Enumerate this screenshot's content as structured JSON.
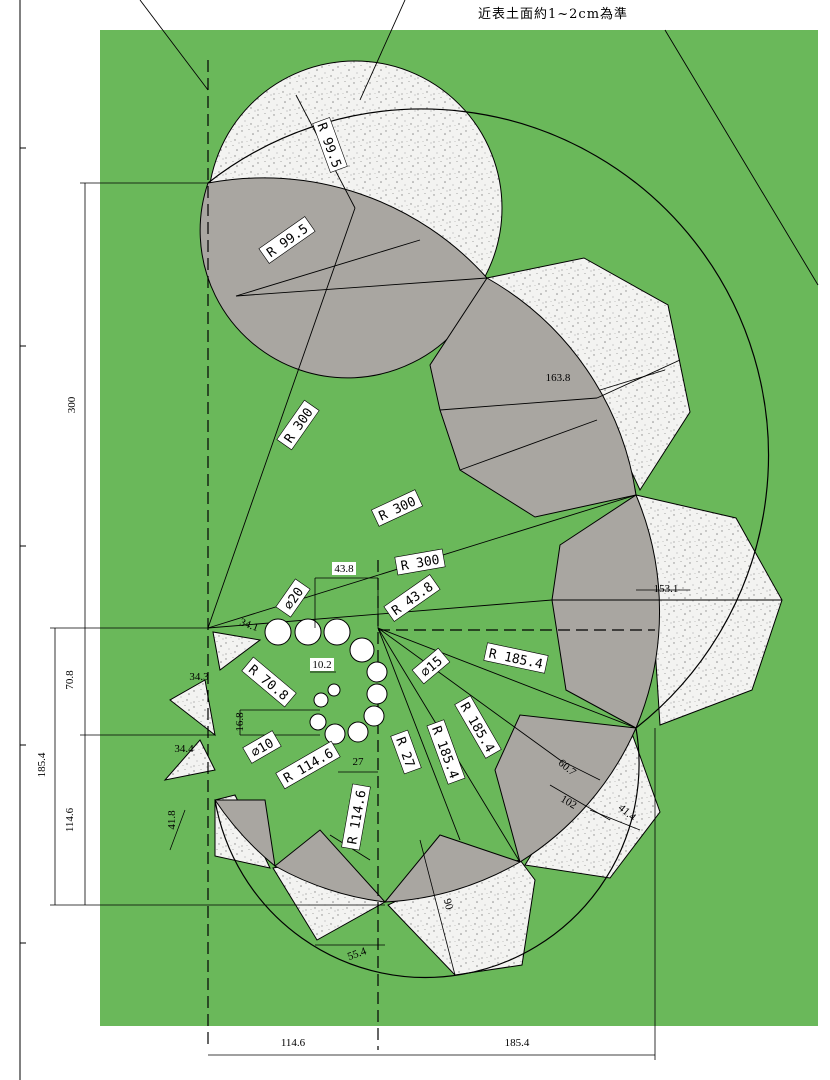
{
  "note": "近表土面約1~2cm為準",
  "colors": {
    "lawn": "#6ab85a",
    "gravel": "#f3f3f1",
    "gravel_dot": "#8a8a8a",
    "paving": "#a9a6a1",
    "line": "#000000"
  },
  "labels": {
    "r99_5_top": "R 99.5",
    "r99_5_mid": "R 99.5",
    "r300_a": "R 300",
    "r300_b": "R 300",
    "r300_c": "R 300",
    "r43_8": "R 43.8",
    "r185_4_a": "R 185.4",
    "r185_4_b": "R 185.4",
    "r185_4_c": "R 185.4",
    "r70_8": "R 70.8",
    "r114_6_a": "R 114.6",
    "r114_6_b": "R 114.6",
    "r27": "R 27",
    "d20": "⌀20",
    "d15": "⌀15",
    "d10": "⌀10"
  },
  "dimensions": {
    "d43_8": "43.8",
    "d10_2": "10.2",
    "d16_8": "16.8",
    "d27": "27",
    "d34_1": "34.1",
    "d34_3": "34.3",
    "d34_4": "34.4",
    "d41_8": "41.8",
    "d55_4": "55.4",
    "d60_7": "60.7",
    "d102": "102",
    "d41_4": "41.4",
    "d163_8": "163.8",
    "d153_1": "153.1",
    "d90": "90",
    "v300": "300",
    "v70_8": "70.8",
    "v185_4": "185.4",
    "v114_6": "114.6",
    "h114_6": "114.6",
    "h185_4": "185.4"
  }
}
